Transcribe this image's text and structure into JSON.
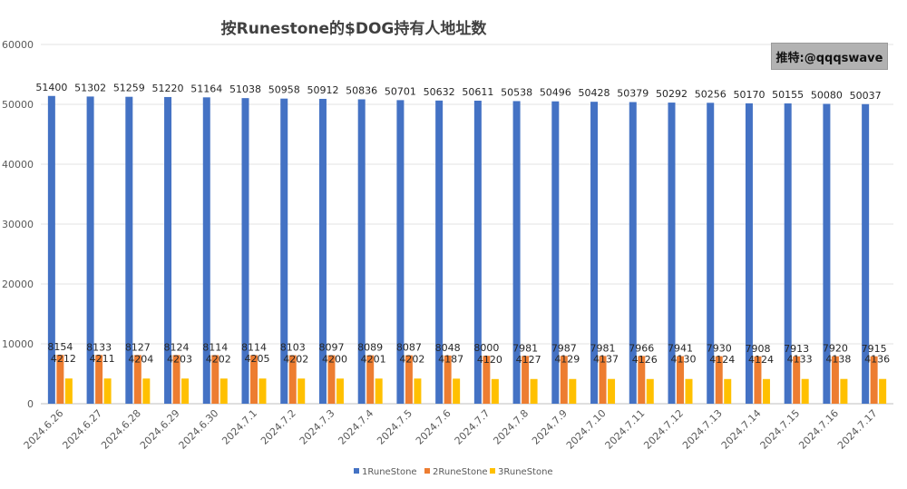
{
  "chart_data": {
    "type": "bar",
    "title": "按Runestone的$DOG持有人地址数",
    "watermark": "推特:@qqqswave",
    "categories": [
      "2024.6.26",
      "2024.6.27",
      "2024.6.28",
      "2024.6.29",
      "2024.6.30",
      "2024.7.1",
      "2024.7.2",
      "2024.7.3",
      "2024.7.4",
      "2024.7.5",
      "2024.7.6",
      "2024.7.7",
      "2024.7.8",
      "2024.7.9",
      "2024.7.10",
      "2024.7.11",
      "2024.7.12",
      "2024.7.13",
      "2024.7.14",
      "2024.7.15",
      "2024.7.16",
      "2024.7.17"
    ],
    "series": [
      {
        "name": "1RuneStone",
        "color": "#4472c4",
        "values": [
          51400,
          51302,
          51259,
          51220,
          51164,
          51038,
          50958,
          50912,
          50836,
          50701,
          50632,
          50611,
          50538,
          50496,
          50428,
          50379,
          50292,
          50256,
          50170,
          50155,
          50080,
          50037
        ]
      },
      {
        "name": "2RuneStone",
        "color": "#ed7d31",
        "values": [
          8154,
          8133,
          8127,
          8124,
          8114,
          8114,
          8103,
          8097,
          8089,
          8087,
          8048,
          8000,
          7981,
          7987,
          7981,
          7966,
          7941,
          7930,
          7908,
          7913,
          7920,
          7915
        ]
      },
      {
        "name": "3RuneStone",
        "color": "#ffc000",
        "values": [
          4212,
          4211,
          4204,
          4203,
          4202,
          4205,
          4202,
          4200,
          4201,
          4202,
          4187,
          4120,
          4127,
          4129,
          4137,
          4126,
          4130,
          4124,
          4124,
          4133,
          4138,
          4136
        ]
      }
    ],
    "yticks": [
      "0",
      "10000",
      "20000",
      "30000",
      "40000",
      "50000",
      "60000"
    ],
    "ylim": [
      0,
      60000
    ],
    "grid": true,
    "legend": "bottom"
  }
}
